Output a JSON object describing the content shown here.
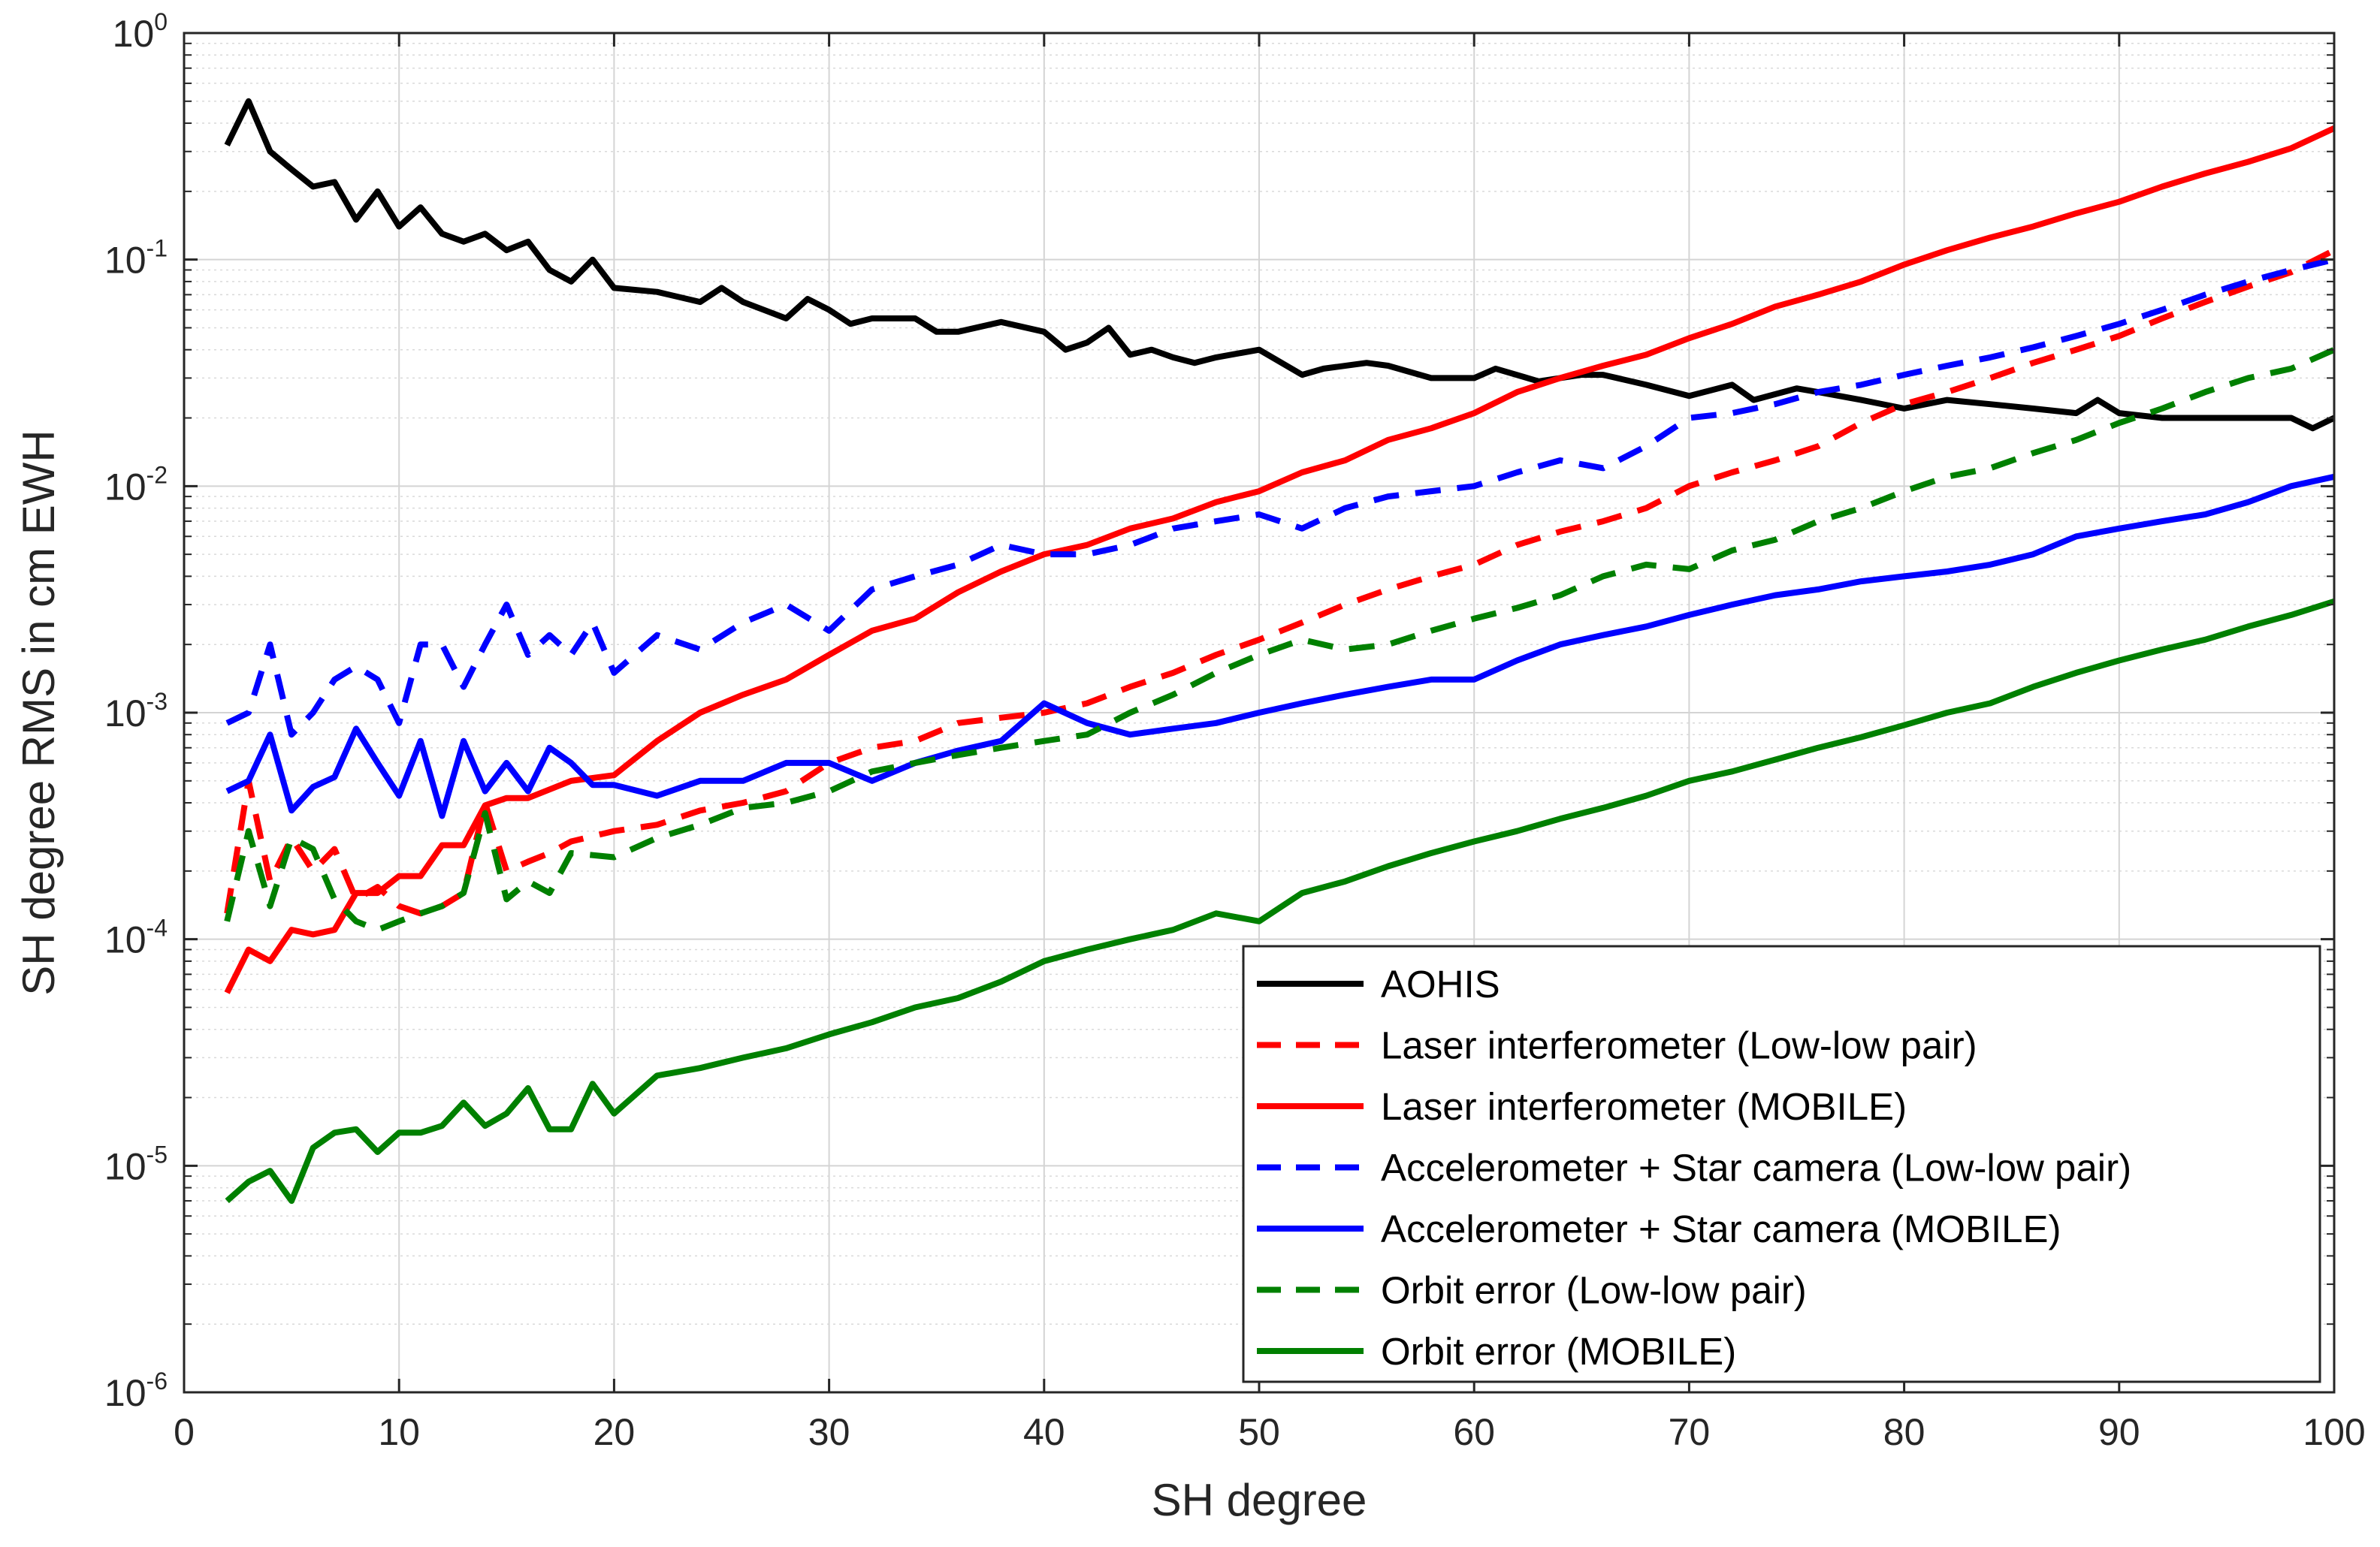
{
  "chart_data": {
    "type": "line",
    "xlabel": "SH degree",
    "ylabel": "SH degree RMS in cm EWH",
    "xlim": [
      0,
      100
    ],
    "ylim": [
      1e-06,
      1
    ],
    "yscale": "log",
    "grid": true,
    "legend_position": "bottom-right",
    "xticks": [
      0,
      10,
      20,
      30,
      40,
      50,
      60,
      70,
      80,
      90,
      100
    ],
    "yticks": [
      {
        "value": 1e-06,
        "base": "10",
        "exp": "-6"
      },
      {
        "value": 1e-05,
        "base": "10",
        "exp": "-5"
      },
      {
        "value": 0.0001,
        "base": "10",
        "exp": "-4"
      },
      {
        "value": 0.001,
        "base": "10",
        "exp": "-3"
      },
      {
        "value": 0.01,
        "base": "10",
        "exp": "-2"
      },
      {
        "value": 0.1,
        "base": "10",
        "exp": "-1"
      },
      {
        "value": 1,
        "base": "10",
        "exp": "0"
      }
    ],
    "series": [
      {
        "name": "AOHIS",
        "color": "#000000",
        "dash": "solid",
        "x": [
          2,
          3,
          4,
          5,
          6,
          7,
          8,
          9,
          10,
          11,
          12,
          13,
          14,
          15,
          16,
          17,
          18,
          19,
          20,
          22,
          24,
          25,
          26,
          28,
          29,
          30,
          31,
          32,
          34,
          35,
          36,
          38,
          40,
          41,
          42,
          43,
          44,
          45,
          46,
          47,
          48,
          50,
          52,
          53,
          55,
          56,
          58,
          60,
          61,
          63,
          65,
          66,
          68,
          70,
          72,
          73,
          75,
          76,
          78,
          80,
          82,
          84,
          86,
          88,
          89,
          90,
          92,
          94,
          96,
          98,
          99,
          100
        ],
        "y": [
          0.32,
          0.5,
          0.3,
          0.25,
          0.21,
          0.22,
          0.15,
          0.2,
          0.14,
          0.17,
          0.13,
          0.12,
          0.13,
          0.11,
          0.12,
          0.09,
          0.08,
          0.1,
          0.075,
          0.072,
          0.065,
          0.075,
          0.065,
          0.055,
          0.067,
          0.06,
          0.052,
          0.055,
          0.055,
          0.048,
          0.048,
          0.053,
          0.048,
          0.04,
          0.043,
          0.05,
          0.038,
          0.04,
          0.037,
          0.035,
          0.037,
          0.04,
          0.031,
          0.033,
          0.035,
          0.034,
          0.03,
          0.03,
          0.033,
          0.029,
          0.031,
          0.031,
          0.028,
          0.025,
          0.028,
          0.024,
          0.027,
          0.026,
          0.024,
          0.022,
          0.024,
          0.023,
          0.022,
          0.021,
          0.024,
          0.021,
          0.02,
          0.02,
          0.02,
          0.02,
          0.018,
          0.02
        ]
      },
      {
        "name": "Laser interferometer (Low-low pair)",
        "color": "#ff0000",
        "dash": "dashed",
        "x": [
          2,
          3,
          4,
          5,
          6,
          7,
          8,
          9,
          10,
          11,
          12,
          13,
          14,
          15,
          16,
          17,
          18,
          20,
          22,
          24,
          26,
          28,
          30,
          32,
          34,
          36,
          38,
          40,
          42,
          44,
          46,
          48,
          50,
          52,
          54,
          56,
          58,
          60,
          62,
          64,
          66,
          68,
          70,
          72,
          74,
          76,
          78,
          80,
          82,
          84,
          86,
          88,
          90,
          92,
          94,
          96,
          98,
          100
        ],
        "y": [
          0.00013,
          0.0005,
          0.00018,
          0.00028,
          0.0002,
          0.00025,
          0.00015,
          0.00017,
          0.00014,
          0.00013,
          0.00014,
          0.00016,
          0.0004,
          0.0002,
          0.00022,
          0.00024,
          0.00027,
          0.0003,
          0.00032,
          0.00037,
          0.0004,
          0.00045,
          0.0006,
          0.0007,
          0.00075,
          0.0009,
          0.00095,
          0.001,
          0.0011,
          0.0013,
          0.0015,
          0.0018,
          0.0021,
          0.0025,
          0.003,
          0.0035,
          0.004,
          0.0045,
          0.0055,
          0.0063,
          0.007,
          0.008,
          0.01,
          0.0115,
          0.013,
          0.015,
          0.019,
          0.023,
          0.026,
          0.03,
          0.035,
          0.04,
          0.046,
          0.055,
          0.065,
          0.076,
          0.088,
          0.11
        ]
      },
      {
        "name": "Laser interferometer (MOBILE)",
        "color": "#ff0000",
        "dash": "solid",
        "x": [
          2,
          3,
          4,
          5,
          6,
          7,
          8,
          9,
          10,
          11,
          12,
          13,
          14,
          15,
          16,
          18,
          20,
          22,
          24,
          26,
          28,
          30,
          32,
          34,
          36,
          38,
          40,
          42,
          44,
          46,
          48,
          50,
          52,
          54,
          56,
          58,
          60,
          62,
          64,
          66,
          68,
          70,
          72,
          74,
          76,
          78,
          80,
          82,
          84,
          86,
          88,
          90,
          92,
          94,
          96,
          98,
          100
        ],
        "y": [
          5.8e-05,
          9e-05,
          8e-05,
          0.00011,
          0.000105,
          0.00011,
          0.00016,
          0.00016,
          0.00019,
          0.00019,
          0.00026,
          0.00026,
          0.00039,
          0.00042,
          0.00042,
          0.0005,
          0.00053,
          0.00075,
          0.001,
          0.0012,
          0.0014,
          0.0018,
          0.0023,
          0.0026,
          0.0034,
          0.0042,
          0.005,
          0.0055,
          0.0065,
          0.0072,
          0.0085,
          0.0095,
          0.0115,
          0.013,
          0.016,
          0.018,
          0.021,
          0.026,
          0.03,
          0.034,
          0.038,
          0.045,
          0.052,
          0.062,
          0.07,
          0.08,
          0.095,
          0.11,
          0.125,
          0.14,
          0.16,
          0.18,
          0.21,
          0.24,
          0.27,
          0.31,
          0.38
        ]
      },
      {
        "name": "Accelerometer + Star camera (Low-low pair)",
        "color": "#0000ff",
        "dash": "dashed",
        "x": [
          2,
          3,
          4,
          5,
          6,
          7,
          8,
          9,
          10,
          11,
          12,
          13,
          14,
          15,
          16,
          17,
          18,
          19,
          20,
          22,
          24,
          26,
          28,
          30,
          32,
          34,
          36,
          38,
          40,
          42,
          44,
          46,
          48,
          50,
          52,
          54,
          56,
          58,
          60,
          62,
          64,
          66,
          68,
          70,
          72,
          74,
          76,
          78,
          80,
          82,
          84,
          86,
          88,
          90,
          92,
          94,
          96,
          98,
          100
        ],
        "y": [
          0.0009,
          0.001,
          0.002,
          0.0008,
          0.001,
          0.0014,
          0.0016,
          0.0014,
          0.0009,
          0.002,
          0.002,
          0.0013,
          0.002,
          0.003,
          0.0018,
          0.0022,
          0.0018,
          0.0025,
          0.0015,
          0.0022,
          0.0019,
          0.0025,
          0.003,
          0.0023,
          0.0035,
          0.004,
          0.0045,
          0.0055,
          0.005,
          0.005,
          0.0055,
          0.0065,
          0.007,
          0.0075,
          0.0065,
          0.008,
          0.009,
          0.0095,
          0.01,
          0.0115,
          0.013,
          0.012,
          0.015,
          0.02,
          0.021,
          0.023,
          0.026,
          0.028,
          0.031,
          0.034,
          0.037,
          0.041,
          0.046,
          0.052,
          0.06,
          0.07,
          0.08,
          0.09,
          0.1
        ]
      },
      {
        "name": "Accelerometer + Star camera (MOBILE)",
        "color": "#0000ff",
        "dash": "solid",
        "x": [
          2,
          3,
          4,
          5,
          6,
          7,
          8,
          9,
          10,
          11,
          12,
          13,
          14,
          15,
          16,
          17,
          18,
          19,
          20,
          22,
          24,
          26,
          28,
          30,
          32,
          34,
          36,
          38,
          40,
          42,
          44,
          46,
          48,
          50,
          52,
          54,
          56,
          58,
          60,
          62,
          64,
          66,
          68,
          70,
          72,
          74,
          76,
          78,
          80,
          82,
          84,
          86,
          88,
          90,
          92,
          94,
          96,
          98,
          100
        ],
        "y": [
          0.00045,
          0.0005,
          0.0008,
          0.00037,
          0.00047,
          0.00052,
          0.00085,
          0.0006,
          0.00043,
          0.00075,
          0.00035,
          0.00075,
          0.00045,
          0.0006,
          0.00045,
          0.0007,
          0.0006,
          0.00048,
          0.00048,
          0.00043,
          0.0005,
          0.0005,
          0.0006,
          0.0006,
          0.0005,
          0.0006,
          0.00068,
          0.00075,
          0.0011,
          0.0009,
          0.0008,
          0.00085,
          0.0009,
          0.001,
          0.0011,
          0.0012,
          0.0013,
          0.0014,
          0.0014,
          0.0017,
          0.002,
          0.0022,
          0.0024,
          0.0027,
          0.003,
          0.0033,
          0.0035,
          0.0038,
          0.004,
          0.0042,
          0.0045,
          0.005,
          0.006,
          0.0065,
          0.007,
          0.0075,
          0.0085,
          0.01,
          0.011
        ]
      },
      {
        "name": "Orbit error (Low-low pair)",
        "color": "#008000",
        "dash": "dashed",
        "x": [
          2,
          3,
          4,
          5,
          6,
          7,
          8,
          9,
          10,
          11,
          12,
          13,
          14,
          15,
          16,
          17,
          18,
          20,
          22,
          24,
          26,
          28,
          30,
          32,
          34,
          36,
          38,
          40,
          42,
          44,
          46,
          48,
          50,
          52,
          54,
          56,
          58,
          60,
          62,
          64,
          66,
          68,
          70,
          72,
          74,
          76,
          78,
          80,
          82,
          84,
          86,
          88,
          90,
          92,
          94,
          96,
          98,
          100
        ],
        "y": [
          0.00012,
          0.0003,
          0.00014,
          0.00028,
          0.00025,
          0.00015,
          0.00012,
          0.00011,
          0.00012,
          0.00013,
          0.00014,
          0.00016,
          0.00036,
          0.00015,
          0.00018,
          0.00016,
          0.00024,
          0.00023,
          0.00028,
          0.00032,
          0.00038,
          0.0004,
          0.00045,
          0.00055,
          0.0006,
          0.00065,
          0.0007,
          0.00075,
          0.0008,
          0.001,
          0.0012,
          0.0015,
          0.0018,
          0.0021,
          0.0019,
          0.002,
          0.0023,
          0.0026,
          0.0029,
          0.0033,
          0.004,
          0.0045,
          0.0043,
          0.0052,
          0.0058,
          0.007,
          0.008,
          0.0095,
          0.011,
          0.012,
          0.014,
          0.016,
          0.019,
          0.022,
          0.026,
          0.03,
          0.033,
          0.04
        ]
      },
      {
        "name": "Orbit error (MOBILE)",
        "color": "#008000",
        "dash": "solid",
        "x": [
          2,
          3,
          4,
          5,
          6,
          7,
          8,
          9,
          10,
          11,
          12,
          13,
          14,
          15,
          16,
          17,
          18,
          19,
          20,
          22,
          24,
          26,
          28,
          30,
          32,
          34,
          36,
          38,
          40,
          42,
          44,
          46,
          48,
          50,
          52,
          54,
          56,
          58,
          60,
          62,
          64,
          66,
          68,
          70,
          72,
          74,
          76,
          78,
          80,
          82,
          84,
          86,
          88,
          90,
          92,
          94,
          96,
          98,
          100
        ],
        "y": [
          7e-06,
          8.5e-06,
          9.5e-06,
          7e-06,
          1.2e-05,
          1.4e-05,
          1.45e-05,
          1.15e-05,
          1.4e-05,
          1.4e-05,
          1.5e-05,
          1.9e-05,
          1.5e-05,
          1.7e-05,
          2.2e-05,
          1.45e-05,
          1.45e-05,
          2.3e-05,
          1.7e-05,
          2.5e-05,
          2.7e-05,
          3e-05,
          3.3e-05,
          3.8e-05,
          4.3e-05,
          5e-05,
          5.5e-05,
          6.5e-05,
          8e-05,
          9e-05,
          0.0001,
          0.00011,
          0.00013,
          0.00012,
          0.00016,
          0.00018,
          0.00021,
          0.00024,
          0.00027,
          0.0003,
          0.00034,
          0.00038,
          0.00043,
          0.0005,
          0.00055,
          0.00062,
          0.0007,
          0.00078,
          0.00088,
          0.001,
          0.0011,
          0.0013,
          0.0015,
          0.0017,
          0.0019,
          0.0021,
          0.0024,
          0.0027,
          0.0031
        ]
      }
    ]
  }
}
